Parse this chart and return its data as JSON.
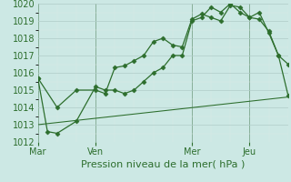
{
  "background_color": "#cce8e4",
  "grid_color_major": "#b0ccc8",
  "grid_color_minor": "#dce8e6",
  "line_color": "#2d6e2d",
  "title": "Pression niveau de la mer( hPa )",
  "xlabel_ticks": [
    "Mar",
    "Ven",
    "Mer",
    "Jeu"
  ],
  "xlabel_tick_positions": [
    0,
    3,
    8,
    11
  ],
  "ylim": [
    1012,
    1020
  ],
  "yticks": [
    1012,
    1013,
    1014,
    1015,
    1016,
    1017,
    1018,
    1019,
    1020
  ],
  "xlim": [
    0,
    13
  ],
  "series1_x": [
    0,
    1,
    2,
    3,
    3.5,
    4,
    4.5,
    5,
    5.5,
    6,
    6.5,
    7,
    7.5,
    8,
    8.5,
    9,
    9.5,
    10,
    10.5,
    11,
    11.5,
    12,
    12.5,
    13
  ],
  "series1_y": [
    1015.7,
    1014.0,
    1015.0,
    1015.0,
    1014.8,
    1016.3,
    1016.4,
    1016.7,
    1017.0,
    1017.8,
    1018.0,
    1017.6,
    1017.5,
    1019.1,
    1019.4,
    1019.2,
    1019.0,
    1019.9,
    1019.8,
    1019.2,
    1019.1,
    1018.4,
    1017.0,
    1016.5
  ],
  "series2_x": [
    0,
    0.5,
    1,
    2,
    3,
    3.5,
    4,
    4.5,
    5,
    5.5,
    6,
    6.5,
    7,
    7.5,
    8,
    8.5,
    9,
    9.5,
    10,
    10.5,
    11,
    11.5,
    12,
    12.5,
    13
  ],
  "series2_y": [
    1015.7,
    1012.6,
    1012.5,
    1013.2,
    1015.2,
    1015.0,
    1015.0,
    1014.8,
    1015.0,
    1015.5,
    1016.0,
    1016.3,
    1017.0,
    1017.0,
    1019.0,
    1019.2,
    1019.8,
    1019.5,
    1020.0,
    1019.5,
    1019.2,
    1019.5,
    1018.3,
    1017.0,
    1014.7
  ],
  "series3_x": [
    0,
    13
  ],
  "series3_y": [
    1013.0,
    1014.6
  ],
  "vline_positions": [
    0,
    3,
    8,
    11
  ],
  "marker": "D",
  "markersize": 2.5,
  "linewidth": 0.9,
  "title_fontsize": 8,
  "tick_fontsize": 7
}
